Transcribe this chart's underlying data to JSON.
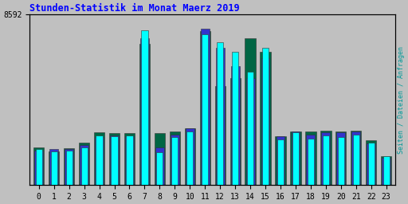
{
  "title": "Stunden-Statistik im Monat Maerz 2019",
  "ylabel_right": "Seiten / Dateien / Anfragen",
  "categories": [
    0,
    1,
    2,
    3,
    4,
    5,
    6,
    7,
    8,
    9,
    10,
    11,
    12,
    13,
    14,
    15,
    16,
    17,
    18,
    19,
    20,
    21,
    22,
    23
  ],
  "ymax": 8592,
  "ytick_label": "8592",
  "background_color": "#c0c0c0",
  "plot_bg_color": "#c0c0c0",
  "border_color": "#000000",
  "cyan_bars": [
    1800,
    1700,
    1750,
    1900,
    2500,
    2450,
    2500,
    7800,
    1650,
    2400,
    2700,
    7600,
    7200,
    6700,
    5700,
    6900,
    2300,
    2650,
    2350,
    2500,
    2400,
    2550,
    2150,
    1450
  ],
  "blue_bars": [
    1750,
    1800,
    1800,
    2000,
    2400,
    2500,
    2450,
    7400,
    1900,
    2550,
    2850,
    7900,
    6900,
    6000,
    5400,
    6400,
    2450,
    2700,
    2550,
    2650,
    2650,
    2700,
    2100,
    1380
  ],
  "green_bars": [
    1900,
    1700,
    1850,
    2150,
    2650,
    2600,
    2600,
    7100,
    2600,
    2700,
    2850,
    7750,
    5000,
    5400,
    7400,
    6700,
    2450,
    2700,
    2700,
    2750,
    2700,
    2750,
    2250,
    1450
  ],
  "colors": {
    "cyan": "#00ffff",
    "blue": "#3333cc",
    "green": "#006644",
    "title": "#0000ff",
    "right_label": "#009999",
    "grid": "#aaaaaa"
  },
  "bar_order": [
    "green",
    "blue",
    "cyan"
  ],
  "num_gridlines": 5
}
